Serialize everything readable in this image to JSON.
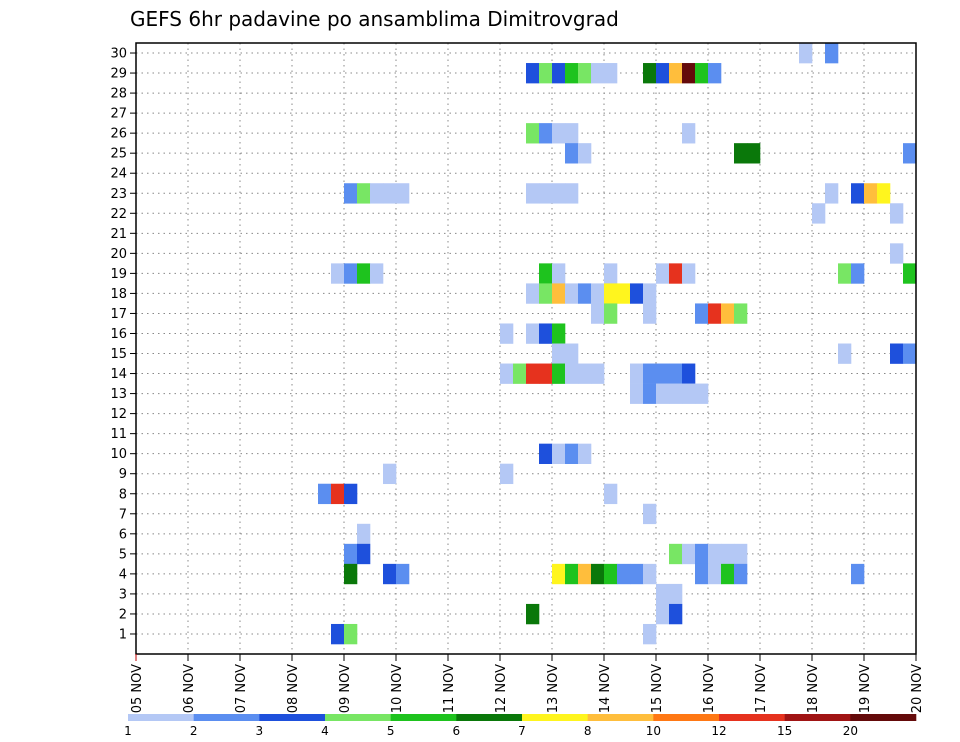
{
  "chart_data": {
    "type": "heatmap",
    "title": "GEFS 6hr padavine po ansamblima Dimitrovgrad",
    "x_ticks": [
      "05 NOV",
      "06 NOV",
      "07 NOV",
      "08 NOV",
      "09 NOV",
      "10 NOV",
      "11 NOV",
      "12 NOV",
      "13 NOV",
      "14 NOV",
      "15 NOV",
      "16 NOV",
      "17 NOV",
      "18 NOV",
      "19 NOV",
      "20 NOV"
    ],
    "y_ticks": [
      "1",
      "2",
      "3",
      "4",
      "5",
      "6",
      "7",
      "8",
      "9",
      "10",
      "11",
      "12",
      "13",
      "14",
      "15",
      "16",
      "17",
      "18",
      "19",
      "20",
      "21",
      "22",
      "23",
      "24",
      "25",
      "26",
      "27",
      "28",
      "29",
      "30"
    ],
    "steps_per_day": 4,
    "grid": "dotted",
    "colorbar": {
      "labels": [
        "1",
        "2",
        "3",
        "4",
        "5",
        "6",
        "7",
        "8",
        "10",
        "12",
        "15",
        "20"
      ],
      "colors": [
        "#b4c8f5",
        "#5b8ef0",
        "#1e50dc",
        "#78e664",
        "#1ec31e",
        "#0a780a",
        "#fff51e",
        "#ffbe3c",
        "#ff7814",
        "#e6321e",
        "#a01414",
        "#640a0a"
      ]
    },
    "cells": [
      {
        "member": 30,
        "step": 52,
        "value": 1
      },
      {
        "member": 30,
        "step": 54,
        "value": 2
      },
      {
        "member": 29,
        "step": 31,
        "value": 3
      },
      {
        "member": 29,
        "step": 32,
        "value": 4
      },
      {
        "member": 29,
        "step": 33,
        "value": 3
      },
      {
        "member": 29,
        "step": 34,
        "value": 5
      },
      {
        "member": 29,
        "step": 35,
        "value": 4
      },
      {
        "member": 29,
        "step": 36,
        "value": 1
      },
      {
        "member": 29,
        "step": 37,
        "value": 1
      },
      {
        "member": 29,
        "step": 40,
        "value": 6
      },
      {
        "member": 29,
        "step": 41,
        "value": 3
      },
      {
        "member": 29,
        "step": 42,
        "value": 8
      },
      {
        "member": 29,
        "step": 43,
        "value": 20
      },
      {
        "member": 29,
        "step": 44,
        "value": 5
      },
      {
        "member": 29,
        "step": 45,
        "value": 2
      },
      {
        "member": 26,
        "step": 31,
        "value": 4
      },
      {
        "member": 26,
        "step": 32,
        "value": 2
      },
      {
        "member": 26,
        "step": 33,
        "value": 1
      },
      {
        "member": 26,
        "step": 34,
        "value": 1
      },
      {
        "member": 26,
        "step": 43,
        "value": 1
      },
      {
        "member": 25,
        "step": 34,
        "value": 2
      },
      {
        "member": 25,
        "step": 35,
        "value": 1
      },
      {
        "member": 25,
        "step": 47,
        "value": 6
      },
      {
        "member": 25,
        "step": 48,
        "value": 6
      },
      {
        "member": 25,
        "step": 60,
        "value": 2
      },
      {
        "member": 23,
        "step": 17,
        "value": 2
      },
      {
        "member": 23,
        "step": 18,
        "value": 4
      },
      {
        "member": 23,
        "step": 19,
        "value": 1
      },
      {
        "member": 23,
        "step": 20,
        "value": 1
      },
      {
        "member": 23,
        "step": 21,
        "value": 1
      },
      {
        "member": 23,
        "step": 31,
        "value": 1
      },
      {
        "member": 23,
        "step": 32,
        "value": 1
      },
      {
        "member": 23,
        "step": 33,
        "value": 1
      },
      {
        "member": 23,
        "step": 34,
        "value": 1
      },
      {
        "member": 23,
        "step": 54,
        "value": 1
      },
      {
        "member": 23,
        "step": 56,
        "value": 3
      },
      {
        "member": 23,
        "step": 57,
        "value": 8
      },
      {
        "member": 23,
        "step": 58,
        "value": 7
      },
      {
        "member": 22,
        "step": 53,
        "value": 1
      },
      {
        "member": 22,
        "step": 59,
        "value": 1
      },
      {
        "member": 20,
        "step": 59,
        "value": 1
      },
      {
        "member": 19,
        "step": 16,
        "value": 1
      },
      {
        "member": 19,
        "step": 17,
        "value": 2
      },
      {
        "member": 19,
        "step": 18,
        "value": 5
      },
      {
        "member": 19,
        "step": 19,
        "value": 1
      },
      {
        "member": 19,
        "step": 32,
        "value": 5
      },
      {
        "member": 19,
        "step": 33,
        "value": 1
      },
      {
        "member": 19,
        "step": 37,
        "value": 1
      },
      {
        "member": 19,
        "step": 41,
        "value": 1
      },
      {
        "member": 19,
        "step": 42,
        "value": 12
      },
      {
        "member": 19,
        "step": 43,
        "value": 1
      },
      {
        "member": 19,
        "step": 55,
        "value": 4
      },
      {
        "member": 19,
        "step": 56,
        "value": 2
      },
      {
        "member": 19,
        "step": 60,
        "value": 5
      },
      {
        "member": 18,
        "step": 31,
        "value": 1
      },
      {
        "member": 18,
        "step": 32,
        "value": 4
      },
      {
        "member": 18,
        "step": 33,
        "value": 8
      },
      {
        "member": 18,
        "step": 34,
        "value": 1
      },
      {
        "member": 18,
        "step": 35,
        "value": 2
      },
      {
        "member": 18,
        "step": 36,
        "value": 1
      },
      {
        "member": 18,
        "step": 37,
        "value": 7
      },
      {
        "member": 18,
        "step": 38,
        "value": 7
      },
      {
        "member": 18,
        "step": 39,
        "value": 3
      },
      {
        "member": 18,
        "step": 40,
        "value": 1
      },
      {
        "member": 17,
        "step": 36,
        "value": 1
      },
      {
        "member": 17,
        "step": 37,
        "value": 4
      },
      {
        "member": 17,
        "step": 40,
        "value": 1
      },
      {
        "member": 17,
        "step": 44,
        "value": 2
      },
      {
        "member": 17,
        "step": 45,
        "value": 12
      },
      {
        "member": 17,
        "step": 46,
        "value": 8
      },
      {
        "member": 17,
        "step": 47,
        "value": 4
      },
      {
        "member": 16,
        "step": 29,
        "value": 1
      },
      {
        "member": 16,
        "step": 31,
        "value": 1
      },
      {
        "member": 16,
        "step": 32,
        "value": 3
      },
      {
        "member": 16,
        "step": 33,
        "value": 5
      },
      {
        "member": 15,
        "step": 33,
        "value": 1
      },
      {
        "member": 15,
        "step": 34,
        "value": 1
      },
      {
        "member": 15,
        "step": 55,
        "value": 1
      },
      {
        "member": 15,
        "step": 59,
        "value": 3
      },
      {
        "member": 15,
        "step": 60,
        "value": 2
      },
      {
        "member": 14,
        "step": 29,
        "value": 1
      },
      {
        "member": 14,
        "step": 30,
        "value": 4
      },
      {
        "member": 14,
        "step": 31,
        "value": 12
      },
      {
        "member": 14,
        "step": 32,
        "value": 12
      },
      {
        "member": 14,
        "step": 33,
        "value": 5
      },
      {
        "member": 14,
        "step": 34,
        "value": 1
      },
      {
        "member": 14,
        "step": 35,
        "value": 1
      },
      {
        "member": 14,
        "step": 36,
        "value": 1
      },
      {
        "member": 14,
        "step": 39,
        "value": 1
      },
      {
        "member": 14,
        "step": 40,
        "value": 2
      },
      {
        "member": 14,
        "step": 41,
        "value": 2
      },
      {
        "member": 14,
        "step": 42,
        "value": 2
      },
      {
        "member": 14,
        "step": 43,
        "value": 3
      },
      {
        "member": 13,
        "step": 39,
        "value": 1
      },
      {
        "member": 13,
        "step": 40,
        "value": 2
      },
      {
        "member": 13,
        "step": 41,
        "value": 1
      },
      {
        "member": 13,
        "step": 42,
        "value": 1
      },
      {
        "member": 13,
        "step": 43,
        "value": 1
      },
      {
        "member": 13,
        "step": 44,
        "value": 1
      },
      {
        "member": 10,
        "step": 32,
        "value": 3
      },
      {
        "member": 10,
        "step": 33,
        "value": 1
      },
      {
        "member": 10,
        "step": 34,
        "value": 2
      },
      {
        "member": 10,
        "step": 35,
        "value": 1
      },
      {
        "member": 9,
        "step": 20,
        "value": 1
      },
      {
        "member": 9,
        "step": 29,
        "value": 1
      },
      {
        "member": 8,
        "step": 15,
        "value": 2
      },
      {
        "member": 8,
        "step": 16,
        "value": 12
      },
      {
        "member": 8,
        "step": 17,
        "value": 3
      },
      {
        "member": 8,
        "step": 37,
        "value": 1
      },
      {
        "member": 7,
        "step": 40,
        "value": 1
      },
      {
        "member": 6,
        "step": 18,
        "value": 1
      },
      {
        "member": 5,
        "step": 17,
        "value": 2
      },
      {
        "member": 5,
        "step": 18,
        "value": 3
      },
      {
        "member": 5,
        "step": 42,
        "value": 4
      },
      {
        "member": 5,
        "step": 43,
        "value": 1
      },
      {
        "member": 5,
        "step": 44,
        "value": 2
      },
      {
        "member": 5,
        "step": 45,
        "value": 1
      },
      {
        "member": 5,
        "step": 46,
        "value": 1
      },
      {
        "member": 5,
        "step": 47,
        "value": 1
      },
      {
        "member": 4,
        "step": 17,
        "value": 6
      },
      {
        "member": 4,
        "step": 20,
        "value": 3
      },
      {
        "member": 4,
        "step": 21,
        "value": 2
      },
      {
        "member": 4,
        "step": 33,
        "value": 7
      },
      {
        "member": 4,
        "step": 34,
        "value": 5
      },
      {
        "member": 4,
        "step": 35,
        "value": 8
      },
      {
        "member": 4,
        "step": 36,
        "value": 6
      },
      {
        "member": 4,
        "step": 37,
        "value": 5
      },
      {
        "member": 4,
        "step": 38,
        "value": 2
      },
      {
        "member": 4,
        "step": 39,
        "value": 2
      },
      {
        "member": 4,
        "step": 40,
        "value": 1
      },
      {
        "member": 4,
        "step": 44,
        "value": 2
      },
      {
        "member": 4,
        "step": 45,
        "value": 1
      },
      {
        "member": 4,
        "step": 46,
        "value": 5
      },
      {
        "member": 4,
        "step": 47,
        "value": 2
      },
      {
        "member": 4,
        "step": 56,
        "value": 2
      },
      {
        "member": 3,
        "step": 41,
        "value": 1
      },
      {
        "member": 3,
        "step": 42,
        "value": 1
      },
      {
        "member": 2,
        "step": 31,
        "value": 6
      },
      {
        "member": 2,
        "step": 41,
        "value": 1
      },
      {
        "member": 2,
        "step": 42,
        "value": 3
      },
      {
        "member": 1,
        "step": 16,
        "value": 3
      },
      {
        "member": 1,
        "step": 17,
        "value": 4
      },
      {
        "member": 1,
        "step": 40,
        "value": 1
      }
    ]
  }
}
